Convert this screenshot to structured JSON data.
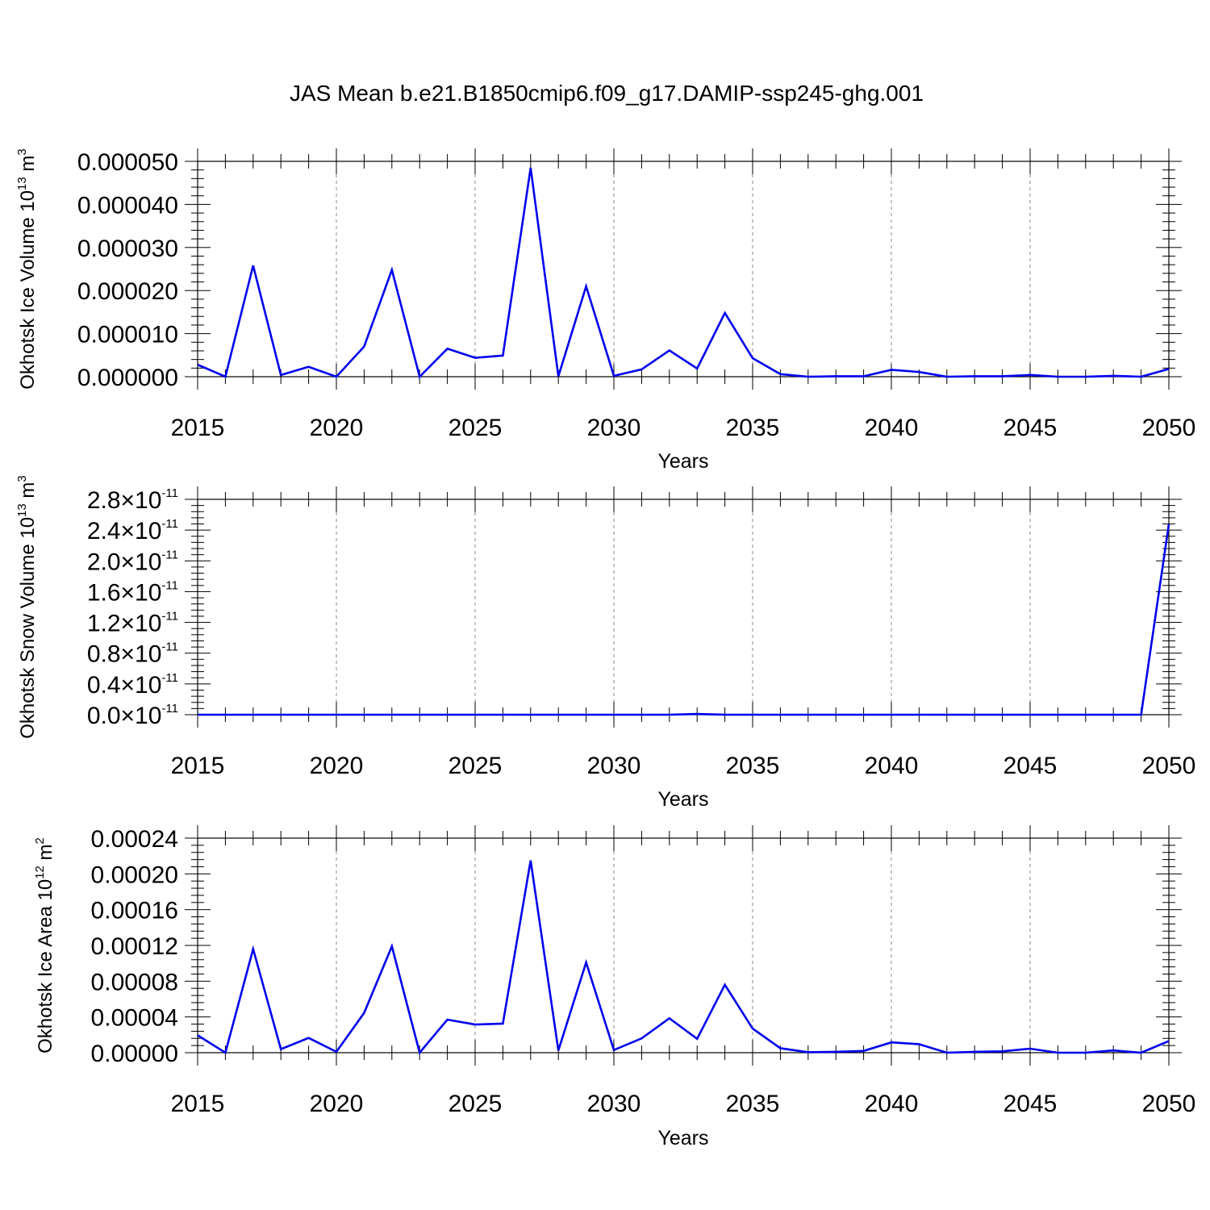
{
  "figure": {
    "title": "JAS Mean b.e21.B1850cmip6.f09_g17.DAMIP-ssp245-ghg.001",
    "line_color": "#0000ee"
  },
  "chart_data": [
    {
      "type": "line",
      "name": "ice-volume",
      "ylabel": {
        "text": "Okhotsk Ice Volume 10",
        "exp": "13",
        "unit": " m",
        "unit_exp": "3"
      },
      "xlabel": "Years",
      "xlim": [
        2015,
        2050
      ],
      "ylim": [
        0,
        5e-05
      ],
      "x_ticks": [
        "2015",
        "2020",
        "2025",
        "2030",
        "2035",
        "2040",
        "2045",
        "2050"
      ],
      "y_ticks": [
        {
          "value": 0.0,
          "label": "0.000000"
        },
        {
          "value": 1e-05,
          "label": "0.000010"
        },
        {
          "value": 2e-05,
          "label": "0.000020"
        },
        {
          "value": 3e-05,
          "label": "0.000030"
        },
        {
          "value": 4e-05,
          "label": "0.000040"
        },
        {
          "value": 5e-05,
          "label": "0.000050"
        }
      ],
      "grid": "vertical dashed",
      "x": [
        2015,
        2016,
        2017,
        2018,
        2019,
        2020,
        2021,
        2022,
        2023,
        2024,
        2025,
        2026,
        2027,
        2028,
        2029,
        2030,
        2031,
        2032,
        2033,
        2034,
        2035,
        2036,
        2037,
        2038,
        2039,
        2040,
        2041,
        2042,
        2043,
        2044,
        2045,
        2046,
        2047,
        2048,
        2049,
        2050
      ],
      "values": [
        2.8e-06,
        0.0,
        2.58e-05,
        4e-07,
        2.3e-06,
        0.0,
        7e-06,
        2.48e-05,
        0.0,
        6.5e-06,
        4.4e-06,
        4.9e-06,
        4.85e-05,
        1e-07,
        2.1e-05,
        2e-07,
        1.7e-06,
        6.1e-06,
        1.9e-06,
        1.48e-05,
        4.3e-06,
        6e-07,
        0.0,
        1e-07,
        1e-07,
        1.6e-06,
        1.1e-06,
        0.0,
        1e-07,
        1e-07,
        4e-07,
        0.0,
        0.0,
        2e-07,
        0.0,
        1.8e-06
      ]
    },
    {
      "type": "line",
      "name": "snow-volume",
      "ylabel": {
        "text": "Okhotsk Snow Volume 10",
        "exp": "13",
        "unit": " m",
        "unit_exp": "3"
      },
      "xlabel": "Years",
      "xlim": [
        2015,
        2050
      ],
      "ylim": [
        0,
        2.8e-11
      ],
      "x_ticks": [
        "2015",
        "2020",
        "2025",
        "2030",
        "2035",
        "2040",
        "2045",
        "2050"
      ],
      "y_ticks": [
        {
          "value": 0.0,
          "mantissa": "0.0",
          "exp": "-11"
        },
        {
          "value": 4e-12,
          "mantissa": "0.4",
          "exp": "-11"
        },
        {
          "value": 8e-12,
          "mantissa": "0.8",
          "exp": "-11"
        },
        {
          "value": 1.2e-11,
          "mantissa": "1.2",
          "exp": "-11"
        },
        {
          "value": 1.6e-11,
          "mantissa": "1.6",
          "exp": "-11"
        },
        {
          "value": 2e-11,
          "mantissa": "2.0",
          "exp": "-11"
        },
        {
          "value": 2.4e-11,
          "mantissa": "2.4",
          "exp": "-11"
        },
        {
          "value": 2.8e-11,
          "mantissa": "2.8",
          "exp": "-11"
        }
      ],
      "y_tick_base": "×10",
      "grid": "vertical dashed",
      "x": [
        2015,
        2016,
        2017,
        2018,
        2019,
        2020,
        2021,
        2022,
        2023,
        2024,
        2025,
        2026,
        2027,
        2028,
        2029,
        2030,
        2031,
        2032,
        2033,
        2034,
        2035,
        2036,
        2037,
        2038,
        2039,
        2040,
        2041,
        2042,
        2043,
        2044,
        2045,
        2046,
        2047,
        2048,
        2049,
        2050
      ],
      "values": [
        0,
        0,
        0,
        0,
        0,
        0,
        0,
        0,
        0,
        0,
        0,
        0,
        0,
        0,
        0,
        0,
        0,
        0,
        1e-13,
        0,
        0,
        0,
        0,
        0,
        0,
        0,
        0,
        0,
        0,
        0,
        0,
        0,
        0,
        0,
        0,
        2.48e-11
      ]
    },
    {
      "type": "line",
      "name": "ice-area",
      "ylabel": {
        "text": "Okhotsk Ice Area 10",
        "exp": "12",
        "unit": " m",
        "unit_exp": "2"
      },
      "xlabel": "Years",
      "xlim": [
        2015,
        2050
      ],
      "ylim": [
        0,
        0.00024
      ],
      "x_ticks": [
        "2015",
        "2020",
        "2025",
        "2030",
        "2035",
        "2040",
        "2045",
        "2050"
      ],
      "y_ticks": [
        {
          "value": 0.0,
          "label": "0.00000"
        },
        {
          "value": 4e-05,
          "label": "0.00004"
        },
        {
          "value": 8e-05,
          "label": "0.00008"
        },
        {
          "value": 0.00012,
          "label": "0.00012"
        },
        {
          "value": 0.00016,
          "label": "0.00016"
        },
        {
          "value": 0.0002,
          "label": "0.00020"
        },
        {
          "value": 0.00024,
          "label": "0.00024"
        }
      ],
      "grid": "vertical dashed",
      "x": [
        2015,
        2016,
        2017,
        2018,
        2019,
        2020,
        2021,
        2022,
        2023,
        2024,
        2025,
        2026,
        2027,
        2028,
        2029,
        2030,
        2031,
        2032,
        2033,
        2034,
        2035,
        2036,
        2037,
        2038,
        2039,
        2040,
        2041,
        2042,
        2043,
        2044,
        2045,
        2046,
        2047,
        2048,
        2049,
        2050
      ],
      "values": [
        1.95e-05,
        0.0,
        0.000116,
        4e-06,
        1.65e-05,
        1e-06,
        4.45e-05,
        0.000119,
        0.0,
        3.7e-05,
        3.15e-05,
        3.25e-05,
        0.000215,
        2.5e-06,
        0.000101,
        3e-06,
        1.6e-05,
        3.85e-05,
        1.55e-05,
        7.6e-05,
        2.7e-05,
        5e-06,
        5e-07,
        1e-06,
        2e-06,
        1.15e-05,
        9.5e-06,
        0.0,
        1e-06,
        1.5e-06,
        4.5e-06,
        0.0,
        0.0,
        2.5e-06,
        0.0,
        1.3e-05
      ]
    }
  ]
}
